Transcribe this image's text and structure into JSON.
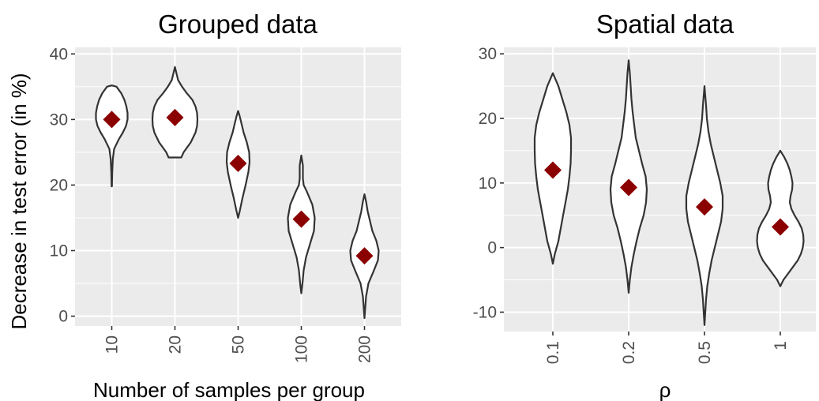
{
  "chart_data": [
    {
      "type": "violin",
      "title": "Grouped data",
      "xlabel": "Number of samples per group",
      "ylabel": "Decrease in test error (in %)",
      "ylim": [
        -1.5,
        41
      ],
      "yticks": [
        "0",
        "10",
        "20",
        "30",
        "40"
      ],
      "ytick_values": [
        0,
        10,
        20,
        30,
        40
      ],
      "categories": [
        "10",
        "20",
        "50",
        "100",
        "200"
      ],
      "means": [
        30,
        30.3,
        23.3,
        14.8,
        9.2
      ],
      "violins": [
        {
          "min": 19.8,
          "max": 35.2,
          "profile": [
            [
              19.8,
              0.2
            ],
            [
              22,
              0.6
            ],
            [
              24,
              1.4
            ],
            [
              25.5,
              3
            ],
            [
              27,
              9
            ],
            [
              28,
              14
            ],
            [
              29,
              18
            ],
            [
              30,
              20
            ],
            [
              31,
              20
            ],
            [
              32,
              18.5
            ],
            [
              33,
              16
            ],
            [
              34,
              12
            ],
            [
              35,
              6
            ],
            [
              35.2,
              0
            ]
          ]
        },
        {
          "min": 24.2,
          "max": 38,
          "profile": [
            [
              24.2,
              8
            ],
            [
              25,
              11
            ],
            [
              26.5,
              20
            ],
            [
              28,
              26
            ],
            [
              29,
              28
            ],
            [
              30,
              28.5
            ],
            [
              31,
              28
            ],
            [
              32,
              26
            ],
            [
              33,
              22
            ],
            [
              34,
              15
            ],
            [
              35,
              9
            ],
            [
              36,
              4
            ],
            [
              37,
              2
            ],
            [
              38,
              0
            ]
          ]
        },
        {
          "min": 15,
          "max": 31.3,
          "profile": [
            [
              15,
              0
            ],
            [
              16,
              2
            ],
            [
              18,
              5.5
            ],
            [
              20,
              9.5
            ],
            [
              22,
              13
            ],
            [
              23.5,
              14.5
            ],
            [
              25,
              14
            ],
            [
              26.5,
              11
            ],
            [
              28,
              7
            ],
            [
              29.5,
              4
            ],
            [
              30.5,
              2
            ],
            [
              31.3,
              0
            ]
          ]
        },
        {
          "min": 3.5,
          "max": 24.5,
          "profile": [
            [
              3.5,
              0
            ],
            [
              5,
              1.5
            ],
            [
              7,
              3
            ],
            [
              9,
              6
            ],
            [
              11,
              11
            ],
            [
              13,
              16
            ],
            [
              15,
              17
            ],
            [
              17,
              14
            ],
            [
              19,
              7
            ],
            [
              20,
              3
            ],
            [
              21,
              2
            ],
            [
              22,
              2
            ],
            [
              23,
              2
            ],
            [
              24.5,
              0
            ]
          ]
        },
        {
          "min": -0.3,
          "max": 18.6,
          "profile": [
            [
              -0.3,
              0
            ],
            [
              1,
              0.8
            ],
            [
              3,
              2
            ],
            [
              5,
              5
            ],
            [
              7,
              12
            ],
            [
              8.5,
              17
            ],
            [
              10,
              18
            ],
            [
              11.5,
              15
            ],
            [
              13,
              10
            ],
            [
              14.5,
              7
            ],
            [
              16,
              4
            ],
            [
              17.5,
              2
            ],
            [
              18.6,
              0
            ]
          ]
        }
      ]
    },
    {
      "type": "violin",
      "title": "Spatial data",
      "xlabel": "ρ",
      "ylabel": "",
      "ylim": [
        -13,
        31
      ],
      "yticks": [
        "-10",
        "0",
        "10",
        "20",
        "30"
      ],
      "ytick_values": [
        -10,
        0,
        10,
        20,
        30
      ],
      "categories": [
        "0.1",
        "0.2",
        "0.5",
        "1"
      ],
      "means": [
        12,
        9.3,
        6.3,
        3.2
      ],
      "violins": [
        {
          "min": -2.5,
          "max": 27,
          "profile": [
            [
              -2.5,
              0
            ],
            [
              -1,
              2.5
            ],
            [
              1,
              7
            ],
            [
              3,
              10
            ],
            [
              5,
              13
            ],
            [
              7,
              16
            ],
            [
              9,
              19
            ],
            [
              11,
              21
            ],
            [
              13,
              22.5
            ],
            [
              15,
              23
            ],
            [
              17,
              23
            ],
            [
              19,
              21
            ],
            [
              21,
              17
            ],
            [
              23,
              12
            ],
            [
              25,
              7
            ],
            [
              27,
              0
            ]
          ]
        },
        {
          "min": -7,
          "max": 29,
          "profile": [
            [
              -7,
              0
            ],
            [
              -5,
              1.5
            ],
            [
              -3,
              3.5
            ],
            [
              -1,
              6.5
            ],
            [
              1,
              10
            ],
            [
              3,
              14
            ],
            [
              5,
              19
            ],
            [
              7,
              22
            ],
            [
              9,
              23
            ],
            [
              11,
              21.5
            ],
            [
              13,
              17
            ],
            [
              15,
              13
            ],
            [
              17,
              9
            ],
            [
              19,
              7
            ],
            [
              21,
              5
            ],
            [
              23,
              3.5
            ],
            [
              25,
              2.5
            ],
            [
              27,
              1.5
            ],
            [
              29,
              0
            ]
          ]
        },
        {
          "min": -12,
          "max": 25,
          "profile": [
            [
              -12,
              0
            ],
            [
              -10,
              1
            ],
            [
              -8,
              2
            ],
            [
              -6,
              3.5
            ],
            [
              -4,
              6
            ],
            [
              -2,
              9
            ],
            [
              0,
              13
            ],
            [
              2,
              17
            ],
            [
              4,
              21
            ],
            [
              6,
              23
            ],
            [
              8,
              23
            ],
            [
              10,
              20
            ],
            [
              12,
              16
            ],
            [
              14,
              12
            ],
            [
              16,
              8
            ],
            [
              18,
              5
            ],
            [
              20,
              3
            ],
            [
              22,
              2
            ],
            [
              25,
              0
            ]
          ]
        },
        {
          "min": -6,
          "max": 15,
          "profile": [
            [
              -6,
              0
            ],
            [
              -5,
              4
            ],
            [
              -4,
              10
            ],
            [
              -3,
              16
            ],
            [
              -2,
              22
            ],
            [
              -1,
              26
            ],
            [
              0,
              28.5
            ],
            [
              1,
              29.5
            ],
            [
              2,
              29
            ],
            [
              3,
              27
            ],
            [
              4,
              23
            ],
            [
              5,
              18
            ],
            [
              6,
              14
            ],
            [
              7,
              12
            ],
            [
              8,
              13
            ],
            [
              9,
              15
            ],
            [
              10,
              15.5
            ],
            [
              11,
              14
            ],
            [
              12,
              12
            ],
            [
              13,
              9
            ],
            [
              14,
              5
            ],
            [
              15,
              0
            ]
          ]
        }
      ]
    }
  ]
}
